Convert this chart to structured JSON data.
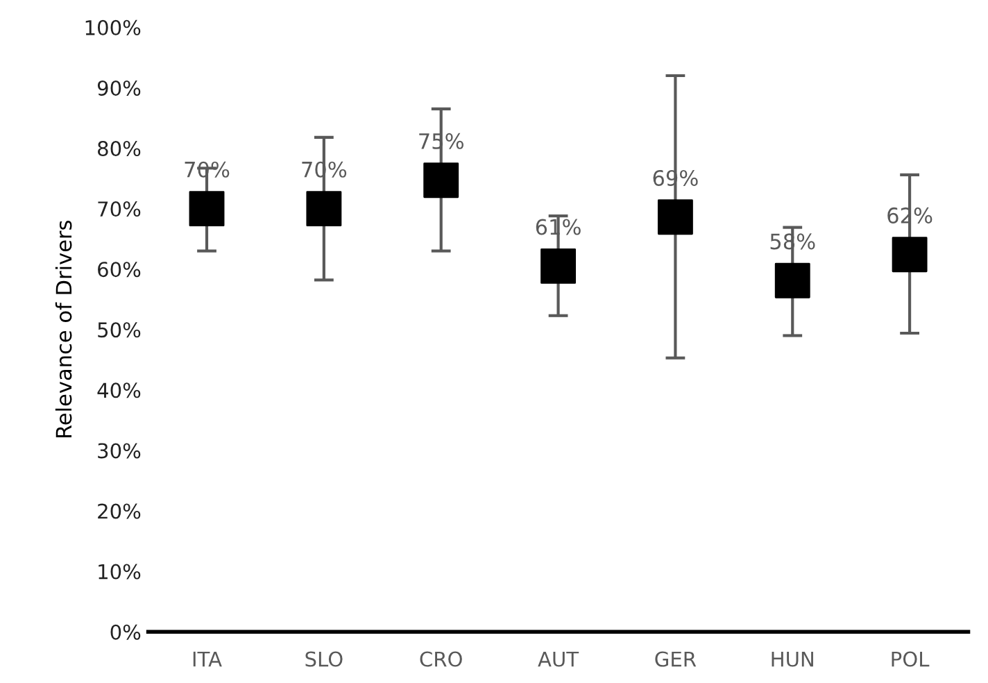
{
  "chart_data": {
    "type": "scatter",
    "ylabel": "Relevance of Drivers",
    "categories": [
      "ITA",
      "SLO",
      "CRO",
      "AUT",
      "GER",
      "HUN",
      "POL"
    ],
    "series": [
      {
        "color": "#000000",
        "values": [
          70,
          70,
          74.7,
          60.5,
          68.6,
          58.1,
          62.4
        ],
        "errors": [
          [
            63,
            76.7
          ],
          [
            58.2,
            81.8
          ],
          [
            63,
            86.5
          ],
          [
            52.3,
            68.8
          ],
          [
            45.3,
            92
          ],
          [
            49,
            66.9
          ],
          [
            49.4,
            75.6
          ]
        ],
        "value_labels": [
          "70%",
          "70%",
          "75%",
          "61%",
          "69%",
          "58%",
          "62%"
        ]
      }
    ],
    "marker": "square",
    "ylim": [
      0,
      100
    ],
    "yticks": [
      {
        "value": 0,
        "label": "0%"
      },
      {
        "value": 10,
        "label": "10%"
      },
      {
        "value": 20,
        "label": "20%"
      },
      {
        "value": 30,
        "label": "30%"
      },
      {
        "value": 40,
        "label": "40%"
      },
      {
        "value": 50,
        "label": "50%"
      },
      {
        "value": 60,
        "label": "60%"
      },
      {
        "value": 70,
        "label": "70%"
      },
      {
        "value": 80,
        "label": "80%"
      },
      {
        "value": 90,
        "label": "90%"
      },
      {
        "value": 100,
        "label": "100%"
      }
    ],
    "grid": false,
    "legend": false
  }
}
